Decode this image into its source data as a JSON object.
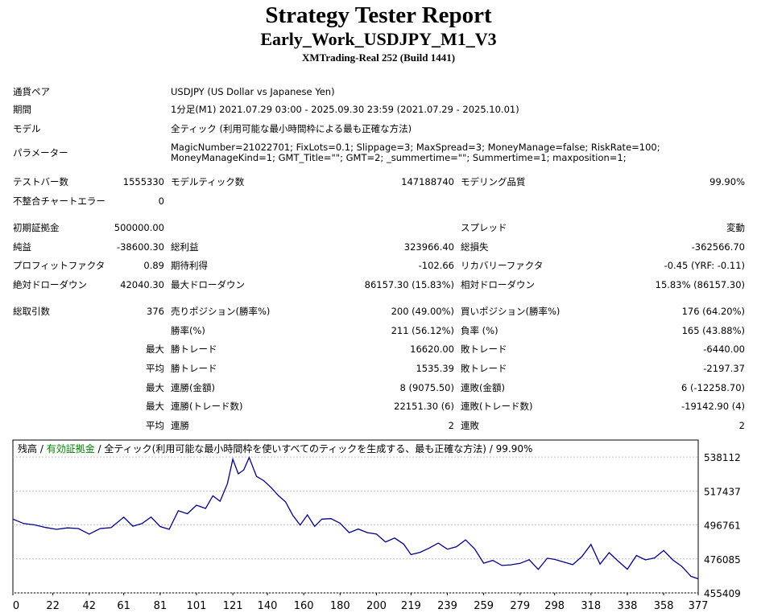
{
  "header": {
    "title": "Strategy Tester Report",
    "subtitle": "Early_Work_USDJPY_M1_V3",
    "build": "XMTrading-Real 252 (Build 1441)"
  },
  "info": {
    "pair_label": "通貨ペア",
    "pair_value": "USDJPY (US Dollar vs Japanese Yen)",
    "period_label": "期間",
    "period_value": "1分足(M1) 2021.07.29 03:00 - 2025.09.30 23:59 (2021.07.29 - 2025.10.01)",
    "model_label": "モデル",
    "model_value": "全ティック (利用可能な最小時間枠による最も正確な方法)",
    "params_label": "パラメーター",
    "params_value": "MagicNumber=21022701; FixLots=0.1; Slippage=3; MaxSpread=3; MoneyManage=false; RiskRate=100; MoneyManageKind=1; GMT_Title=\"\"; GMT=2; _summertime=\"\"; Summertime=1; maxposition=1;"
  },
  "stats": {
    "bars_label": "テストバー数",
    "bars_value": "1555330",
    "ticks_label": "モデルティック数",
    "ticks_value": "147188740",
    "quality_label": "モデリング品質",
    "quality_value": "99.90%",
    "mismatch_label": "不整合チャートエラー",
    "mismatch_value": "0",
    "deposit_label": "初期証拠金",
    "deposit_value": "500000.00",
    "spread_label": "スプレッド",
    "spread_value": "変動",
    "net_label": "純益",
    "net_value": "-38600.30",
    "gross_profit_label": "総利益",
    "gross_profit_value": "323966.40",
    "gross_loss_label": "総損失",
    "gross_loss_value": "-362566.70",
    "pf_label": "プロフィットファクタ",
    "pf_value": "0.89",
    "expected_label": "期待利得",
    "expected_value": "-102.66",
    "recovery_label": "リカバリーファクタ",
    "recovery_value": "-0.45 (YRF: -0.11)",
    "abs_dd_label": "絶対ドローダウン",
    "abs_dd_value": "42040.30",
    "max_dd_label": "最大ドローダウン",
    "max_dd_value": "86157.30 (15.83%)",
    "rel_dd_label": "相対ドローダウン",
    "rel_dd_value": "15.83% (86157.30)",
    "trades_label": "総取引数",
    "trades_value": "376",
    "short_label": "売りポジション(勝率%)",
    "short_value": "200 (49.00%)",
    "long_label": "買いポジション(勝率%)",
    "long_value": "176 (64.20%)",
    "win_rate_label": "勝率(%)",
    "win_rate_value": "211 (56.12%)",
    "loss_rate_label": "負率 (%)",
    "loss_rate_value": "165 (43.88%)",
    "max_label": "最大",
    "avg_label": "平均",
    "largest_win_label": "勝トレード",
    "largest_win_value": "16620.00",
    "largest_loss_label": "敗トレード",
    "largest_loss_value": "-6440.00",
    "avg_win_label": "勝トレード",
    "avg_win_value": "1535.39",
    "avg_loss_label": "敗トレード",
    "avg_loss_value": "-2197.37",
    "consec_win_amt_label": "連勝(金額)",
    "consec_win_amt_value": "8 (9075.50)",
    "consec_loss_amt_label": "連敗(金額)",
    "consec_loss_amt_value": "6 (-12258.70)",
    "consec_win_trd_label": "連勝(トレード数)",
    "consec_win_trd_value": "22151.30 (6)",
    "consec_loss_trd_label": "連敗(トレード数)",
    "consec_loss_trd_value": "-19142.90 (4)",
    "avg_consec_win_label": "連勝",
    "avg_consec_win_value": "2",
    "avg_consec_loss_label": "連敗",
    "avg_consec_loss_value": "2"
  },
  "chart_data": {
    "type": "line",
    "legend": {
      "balance": "残高",
      "sep1": " / ",
      "equity": "有効証拠金",
      "sep2": " / ",
      "model": "全ティック(利用可能な最小時間枠を使いすべてのティックを生成する、最も正確な方法) / 99.90%"
    },
    "x_ticks": [
      "0",
      "22",
      "42",
      "61",
      "81",
      "101",
      "121",
      "140",
      "160",
      "180",
      "200",
      "219",
      "239",
      "259",
      "279",
      "298",
      "318",
      "338",
      "358",
      "377"
    ],
    "y_ticks": [
      "538112",
      "517437",
      "496761",
      "476085",
      "455409"
    ],
    "ylim": [
      455409,
      548450
    ],
    "xlim": [
      0,
      377
    ],
    "colors": {
      "balance": "#00008b",
      "equity": "#008000",
      "frame": "#000000",
      "grid": "#c0c0c0"
    },
    "series": [
      {
        "x": [
          0,
          6,
          12,
          18,
          24,
          30,
          36,
          42,
          48,
          54,
          61,
          66,
          71,
          76,
          81,
          86,
          91,
          96,
          101,
          106,
          110,
          114,
          118,
          121,
          124,
          127,
          130,
          134,
          138,
          142,
          146,
          150,
          154,
          158,
          162,
          166,
          170,
          175,
          180,
          185,
          190,
          195,
          200,
          205,
          210,
          215,
          219,
          224,
          229,
          234,
          239,
          244,
          249,
          254,
          259,
          264,
          269,
          274,
          279,
          284,
          289,
          294,
          298,
          303,
          308,
          313,
          318,
          323,
          328,
          333,
          338,
          343,
          348,
          353,
          358,
          363,
          368,
          373,
          377
        ],
        "y": [
          500300,
          497600,
          496800,
          495200,
          494100,
          495000,
          494600,
          491200,
          494600,
          495100,
          501500,
          496000,
          497600,
          501600,
          495800,
          494100,
          505400,
          503600,
          508800,
          506800,
          514500,
          511200,
          521900,
          536800,
          527900,
          530300,
          537800,
          526300,
          523700,
          519600,
          514700,
          510800,
          502600,
          496700,
          502900,
          495900,
          500300,
          500600,
          497800,
          492100,
          494300,
          492100,
          491200,
          486400,
          488800,
          485100,
          478700,
          480100,
          482700,
          485700,
          482000,
          483500,
          487700,
          482200,
          473500,
          475200,
          472100,
          472500,
          473400,
          475600,
          469700,
          476500,
          475800,
          474200,
          472600,
          477500,
          484900,
          472900,
          479900,
          474700,
          469800,
          478200,
          475500,
          476700,
          481200,
          475500,
          471500,
          465500,
          464000
        ]
      }
    ]
  }
}
